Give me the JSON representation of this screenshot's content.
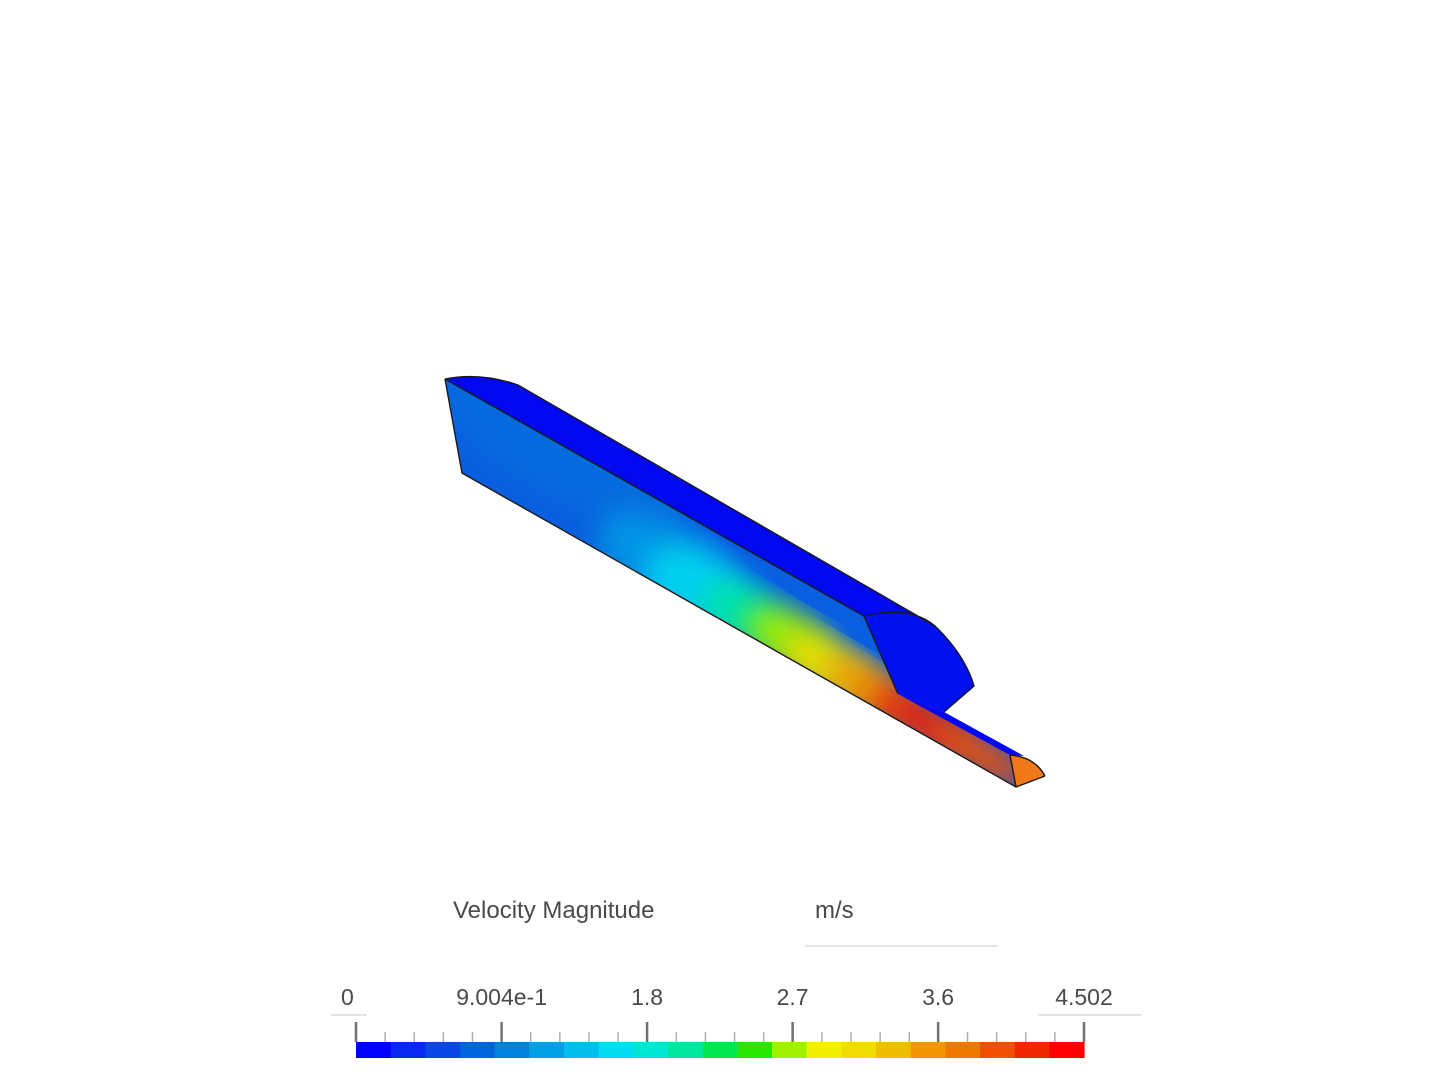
{
  "legend": {
    "title": "Velocity Magnitude",
    "units": "m/s",
    "min": 0,
    "max": 4.502,
    "tick_labels": [
      "0",
      "9.004e-1",
      "1.8",
      "2.7",
      "3.6",
      "4.502"
    ],
    "tick_values": [
      0,
      0.9004,
      1.8,
      2.7,
      3.6,
      4.502
    ],
    "color_bands": [
      "#0000ff",
      "#0a28f0",
      "#0a46e6",
      "#0064dc",
      "#0082dc",
      "#00a0e6",
      "#00beeb",
      "#00dcf0",
      "#00e6d2",
      "#00e6a0",
      "#00e650",
      "#28e600",
      "#a0f000",
      "#f0f000",
      "#f0dc00",
      "#f0be00",
      "#f09600",
      "#f07800",
      "#f05000",
      "#f02800",
      "#ff0000"
    ]
  },
  "model": {
    "colors": {
      "top_face": "#0008f0",
      "cap_face": "#0010ee",
      "side_base": "#0a5ee0",
      "outlet_face": "#f07818",
      "edge": "#1a1a1a"
    }
  }
}
